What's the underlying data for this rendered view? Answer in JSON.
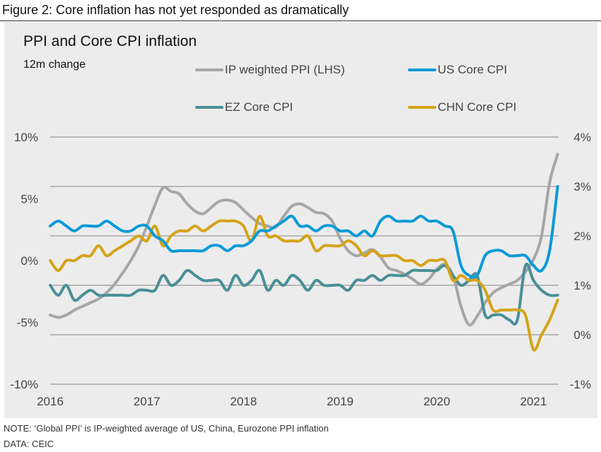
{
  "figure_title": "Figure 2: Core inflation has not yet responded as dramatically",
  "note": "NOTE: ‘Global PPI’ is IP-weighted average of US, China, Eurozone PPI inflation",
  "source": "DATA: CEIC",
  "chart_data": {
    "type": "line",
    "title": "PPI and Core CPI inflation",
    "subtitle": "12m change",
    "xlabel": "",
    "ylabel_left": "",
    "ylabel_right": "",
    "x_start": "2016-01",
    "x_frequency": "monthly",
    "x_ticks": [
      "2016",
      "2017",
      "2018",
      "2019",
      "2020",
      "2021"
    ],
    "ylim_left": [
      -10,
      10
    ],
    "yticks_left": [
      "10%",
      "5%",
      "0%",
      "-5%",
      "-10%"
    ],
    "yticks_left_values": [
      10,
      5,
      0,
      -5,
      -10
    ],
    "ylim_right": [
      -1,
      4
    ],
    "yticks_right": [
      "4%",
      "3%",
      "2%",
      "1%",
      "0%",
      "-1%"
    ],
    "yticks_right_values": [
      4,
      3,
      2,
      1,
      0,
      -1
    ],
    "grid": true,
    "legend_position": "top",
    "series": [
      {
        "name": "IP weighted PPI (LHS)",
        "axis": "left",
        "color": "#a6a6a6",
        "values": [
          -4.4,
          -4.6,
          -4.4,
          -4.0,
          -3.7,
          -3.4,
          -3.1,
          -2.6,
          -1.9,
          -1.0,
          0.0,
          1.2,
          2.8,
          4.5,
          5.9,
          5.6,
          5.4,
          4.6,
          4.0,
          3.8,
          4.3,
          4.8,
          4.9,
          4.7,
          4.1,
          3.5,
          3.0,
          2.8,
          2.7,
          3.6,
          4.4,
          4.6,
          4.3,
          3.9,
          3.8,
          3.2,
          1.8,
          0.8,
          0.4,
          0.6,
          0.9,
          0.3,
          -0.6,
          -0.8,
          -1.1,
          -1.5,
          -1.9,
          -1.5,
          -0.7,
          -0.3,
          -1.2,
          -3.7,
          -5.2,
          -4.5,
          -3.4,
          -2.6,
          -2.2,
          -1.9,
          -1.6,
          -0.9,
          0.1,
          2.0,
          6.3,
          8.6
        ]
      },
      {
        "name": "US Core CPI",
        "axis": "right",
        "color": "#0b9ad8",
        "values": [
          2.2,
          2.3,
          2.2,
          2.1,
          2.2,
          2.2,
          2.2,
          2.3,
          2.2,
          2.1,
          2.1,
          2.2,
          2.2,
          2.0,
          1.9,
          1.7,
          1.7,
          1.7,
          1.7,
          1.7,
          1.8,
          1.8,
          1.7,
          1.8,
          1.8,
          1.9,
          2.1,
          2.1,
          2.2,
          2.3,
          2.4,
          2.2,
          2.2,
          2.1,
          2.2,
          2.2,
          2.1,
          2.1,
          2.0,
          2.1,
          2.0,
          2.3,
          2.4,
          2.3,
          2.3,
          2.3,
          2.4,
          2.3,
          2.3,
          2.2,
          2.1,
          1.4,
          1.2,
          1.2,
          1.6,
          1.7,
          1.7,
          1.6,
          1.6,
          1.6,
          1.4,
          1.3,
          1.7,
          3.0
        ]
      },
      {
        "name": "EZ Core CPI",
        "axis": "right",
        "color": "#4a8f97",
        "values": [
          1.0,
          0.8,
          1.0,
          0.7,
          0.8,
          0.9,
          0.8,
          0.8,
          0.8,
          0.8,
          0.8,
          0.9,
          0.9,
          0.9,
          1.2,
          1.0,
          1.1,
          1.3,
          1.2,
          1.1,
          1.1,
          1.1,
          0.9,
          1.2,
          1.0,
          1.1,
          1.3,
          0.9,
          1.1,
          1.0,
          1.2,
          1.1,
          0.9,
          1.1,
          1.0,
          1.0,
          1.0,
          0.9,
          1.1,
          1.1,
          1.2,
          1.1,
          1.2,
          1.2,
          1.2,
          1.3,
          1.3,
          1.3,
          1.3,
          1.4,
          1.2,
          1.0,
          1.1,
          1.2,
          0.4,
          0.4,
          0.4,
          0.3,
          0.3,
          1.4,
          1.1,
          0.9,
          0.8,
          0.8
        ]
      },
      {
        "name": "CHN Core CPI",
        "axis": "right",
        "color": "#d4a419",
        "values": [
          1.5,
          1.3,
          1.5,
          1.5,
          1.6,
          1.6,
          1.8,
          1.6,
          1.7,
          1.8,
          1.9,
          2.0,
          1.9,
          2.2,
          1.8,
          2.0,
          2.1,
          2.1,
          2.2,
          2.1,
          2.2,
          2.3,
          2.3,
          2.3,
          2.2,
          1.9,
          2.4,
          2.0,
          2.0,
          1.9,
          1.9,
          1.9,
          2.0,
          1.7,
          1.8,
          1.8,
          1.8,
          1.9,
          1.8,
          1.6,
          1.7,
          1.6,
          1.6,
          1.6,
          1.5,
          1.5,
          1.4,
          1.5,
          1.5,
          1.5,
          1.1,
          1.2,
          1.1,
          1.1,
          0.9,
          0.5,
          0.5,
          0.5,
          0.5,
          0.4,
          -0.3,
          0.0,
          0.3,
          0.7
        ]
      }
    ]
  }
}
